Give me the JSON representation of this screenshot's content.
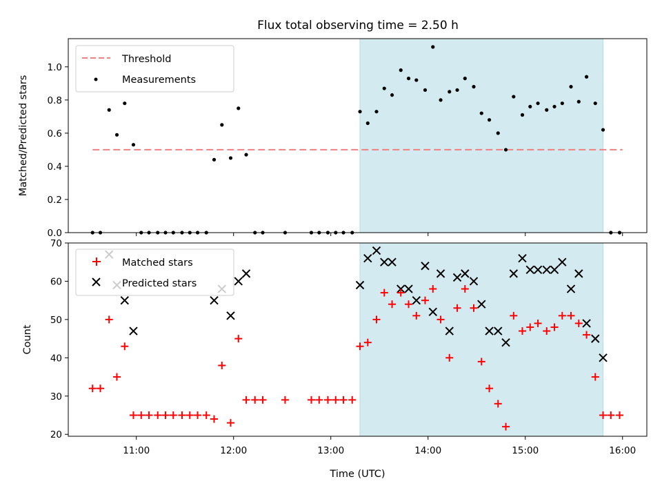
{
  "chart_data": {
    "type": "scatter",
    "title": "Flux total observing time = 2.50 h",
    "xlabel": "Time (UTC)",
    "x_ticks": [
      "11:00",
      "12:00",
      "13:00",
      "14:00",
      "15:00",
      "16:00"
    ],
    "x_tick_hours": [
      11,
      12,
      13,
      14,
      15,
      16
    ],
    "xlim_hours": [
      10.3,
      16.25
    ],
    "shaded_interval_hours": [
      13.3,
      15.8
    ],
    "shade_color": "#d3eaf0",
    "top": {
      "ylabel": "Matched/Predicted stars",
      "ylim": [
        0,
        1.17
      ],
      "yticks": [
        "0.0",
        "0.2",
        "0.4",
        "0.6",
        "0.8",
        "1.0"
      ],
      "threshold": {
        "name": "Threshold",
        "value": 0.5,
        "x_range_hours": [
          10.55,
          16.0
        ],
        "color": "#f08080"
      },
      "series": [
        {
          "name": "Measurements",
          "color": "#000000",
          "points": [
            [
              10.55,
              0
            ],
            [
              10.63,
              0
            ],
            [
              10.72,
              0.74
            ],
            [
              10.8,
              0.59
            ],
            [
              10.88,
              0.78
            ],
            [
              10.97,
              0.53
            ],
            [
              11.05,
              0
            ],
            [
              11.13,
              0
            ],
            [
              11.22,
              0
            ],
            [
              11.3,
              0
            ],
            [
              11.38,
              0
            ],
            [
              11.47,
              0
            ],
            [
              11.55,
              0
            ],
            [
              11.63,
              0
            ],
            [
              11.72,
              0
            ],
            [
              11.8,
              0.44
            ],
            [
              11.88,
              0.65
            ],
            [
              11.97,
              0.45
            ],
            [
              12.05,
              0.75
            ],
            [
              12.13,
              0.47
            ],
            [
              12.22,
              0
            ],
            [
              12.3,
              0
            ],
            [
              12.53,
              0
            ],
            [
              12.8,
              0
            ],
            [
              12.88,
              0
            ],
            [
              12.97,
              0
            ],
            [
              13.05,
              0
            ],
            [
              13.13,
              0
            ],
            [
              13.22,
              0
            ],
            [
              13.3,
              0.73
            ],
            [
              13.38,
              0.66
            ],
            [
              13.47,
              0.73
            ],
            [
              13.55,
              0.87
            ],
            [
              13.63,
              0.83
            ],
            [
              13.72,
              0.98
            ],
            [
              13.8,
              0.93
            ],
            [
              13.88,
              0.92
            ],
            [
              13.97,
              0.86
            ],
            [
              14.05,
              1.12
            ],
            [
              14.13,
              0.8
            ],
            [
              14.22,
              0.85
            ],
            [
              14.3,
              0.86
            ],
            [
              14.38,
              0.93
            ],
            [
              14.47,
              0.88
            ],
            [
              14.55,
              0.72
            ],
            [
              14.63,
              0.68
            ],
            [
              14.72,
              0.6
            ],
            [
              14.8,
              0.5
            ],
            [
              14.88,
              0.82
            ],
            [
              14.97,
              0.71
            ],
            [
              15.05,
              0.76
            ],
            [
              15.13,
              0.78
            ],
            [
              15.22,
              0.74
            ],
            [
              15.3,
              0.76
            ],
            [
              15.38,
              0.78
            ],
            [
              15.47,
              0.88
            ],
            [
              15.55,
              0.79
            ],
            [
              15.63,
              0.94
            ],
            [
              15.72,
              0.78
            ],
            [
              15.8,
              0.62
            ],
            [
              15.88,
              0
            ],
            [
              15.97,
              0
            ]
          ]
        }
      ],
      "legend": [
        "Threshold",
        "Measurements"
      ]
    },
    "bottom": {
      "ylabel": "Count",
      "ylim": [
        19.5,
        70
      ],
      "yticks": [
        "20",
        "30",
        "40",
        "50",
        "60",
        "70"
      ],
      "series": [
        {
          "name": "Matched stars",
          "marker": "plus",
          "color": "#ff0000",
          "points": [
            [
              10.55,
              32
            ],
            [
              10.63,
              32
            ],
            [
              10.72,
              50
            ],
            [
              10.8,
              35
            ],
            [
              10.88,
              43
            ],
            [
              10.97,
              25
            ],
            [
              11.05,
              25
            ],
            [
              11.13,
              25
            ],
            [
              11.22,
              25
            ],
            [
              11.3,
              25
            ],
            [
              11.38,
              25
            ],
            [
              11.47,
              25
            ],
            [
              11.55,
              25
            ],
            [
              11.63,
              25
            ],
            [
              11.72,
              25
            ],
            [
              11.8,
              24
            ],
            [
              11.88,
              38
            ],
            [
              11.97,
              23
            ],
            [
              12.05,
              45
            ],
            [
              12.13,
              29
            ],
            [
              12.22,
              29
            ],
            [
              12.3,
              29
            ],
            [
              12.53,
              29
            ],
            [
              12.8,
              29
            ],
            [
              12.88,
              29
            ],
            [
              12.97,
              29
            ],
            [
              13.05,
              29
            ],
            [
              13.13,
              29
            ],
            [
              13.22,
              29
            ],
            [
              13.3,
              43
            ],
            [
              13.38,
              44
            ],
            [
              13.47,
              50
            ],
            [
              13.55,
              57
            ],
            [
              13.63,
              54
            ],
            [
              13.72,
              57
            ],
            [
              13.8,
              54
            ],
            [
              13.88,
              51
            ],
            [
              13.97,
              55
            ],
            [
              14.05,
              58
            ],
            [
              14.13,
              50
            ],
            [
              14.22,
              40
            ],
            [
              14.3,
              53
            ],
            [
              14.38,
              58
            ],
            [
              14.47,
              53
            ],
            [
              14.55,
              39
            ],
            [
              14.63,
              32
            ],
            [
              14.72,
              28
            ],
            [
              14.8,
              22
            ],
            [
              14.88,
              51
            ],
            [
              14.97,
              47
            ],
            [
              15.05,
              48
            ],
            [
              15.13,
              49
            ],
            [
              15.22,
              47
            ],
            [
              15.3,
              48
            ],
            [
              15.38,
              51
            ],
            [
              15.47,
              51
            ],
            [
              15.55,
              49
            ],
            [
              15.63,
              46
            ],
            [
              15.72,
              35
            ],
            [
              15.8,
              25
            ],
            [
              15.88,
              25
            ],
            [
              15.97,
              25
            ]
          ]
        },
        {
          "name": "Predicted stars",
          "marker": "x",
          "color": "#000000",
          "points": [
            [
              10.72,
              67
            ],
            [
              10.8,
              59
            ],
            [
              10.88,
              55
            ],
            [
              10.97,
              47
            ],
            [
              11.8,
              55
            ],
            [
              11.88,
              58
            ],
            [
              11.97,
              51
            ],
            [
              12.05,
              60
            ],
            [
              12.13,
              62
            ],
            [
              13.3,
              59
            ],
            [
              13.38,
              66
            ],
            [
              13.47,
              68
            ],
            [
              13.55,
              65
            ],
            [
              13.63,
              65
            ],
            [
              13.72,
              58
            ],
            [
              13.8,
              58
            ],
            [
              13.88,
              55
            ],
            [
              13.97,
              64
            ],
            [
              14.05,
              52
            ],
            [
              14.13,
              62
            ],
            [
              14.22,
              47
            ],
            [
              14.3,
              61
            ],
            [
              14.38,
              62
            ],
            [
              14.47,
              60
            ],
            [
              14.55,
              54
            ],
            [
              14.63,
              47
            ],
            [
              14.72,
              47
            ],
            [
              14.8,
              44
            ],
            [
              14.88,
              62
            ],
            [
              14.97,
              66
            ],
            [
              15.05,
              63
            ],
            [
              15.13,
              63
            ],
            [
              15.22,
              63
            ],
            [
              15.3,
              63
            ],
            [
              15.38,
              65
            ],
            [
              15.47,
              58
            ],
            [
              15.55,
              62
            ],
            [
              15.63,
              49
            ],
            [
              15.72,
              45
            ],
            [
              15.8,
              40
            ]
          ]
        }
      ],
      "legend": [
        "Matched stars",
        "Predicted stars"
      ]
    }
  }
}
